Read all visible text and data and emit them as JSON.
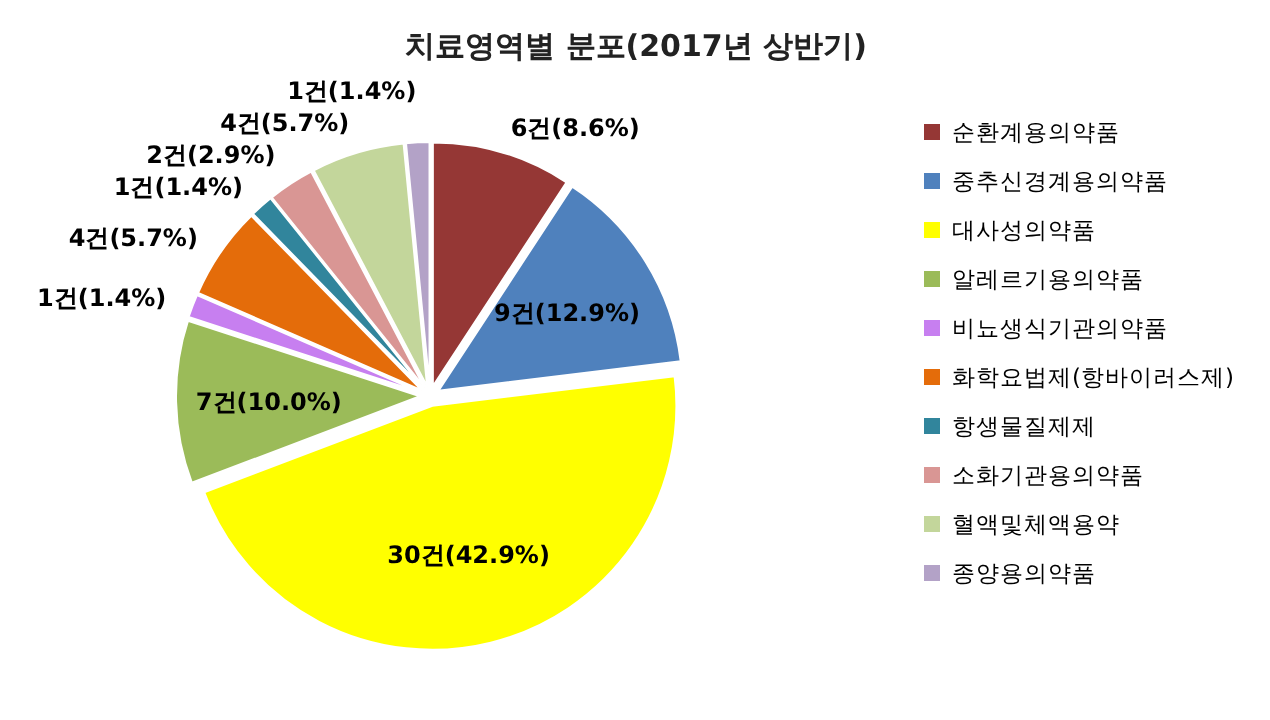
{
  "chart_data": {
    "type": "pie",
    "title": "치료영역별 분포(2017년 상반기)",
    "categories": [
      "순환계용의약품",
      "중추신경계용의약품",
      "대사성의약품",
      "알레르기용의약품",
      "비뇨생식기관의약품",
      "화학요법제(항바이러스제)",
      "항생물질제제",
      "소화기관용의약품",
      "혈액및체액용약",
      "종양용의약품"
    ],
    "values": [
      6,
      9,
      30,
      7,
      1,
      4,
      1,
      2,
      4,
      1
    ],
    "value_labels": [
      "6건(8.6%)",
      "9건(12.9%)",
      "30건(42.9%)",
      "7건(10.0%)",
      "1건(1.4%)",
      "4건(5.7%)",
      "1건(1.4%)",
      "2건(2.9%)",
      "4건(5.7%)",
      "1건(1.4%)"
    ],
    "colors": [
      "#953735",
      "#4f81bd",
      "#ffff00",
      "#9bbb59",
      "#c77ff0",
      "#e46c0a",
      "#31859c",
      "#d99694",
      "#c3d69b",
      "#b3a2c7"
    ],
    "legend": "right"
  }
}
